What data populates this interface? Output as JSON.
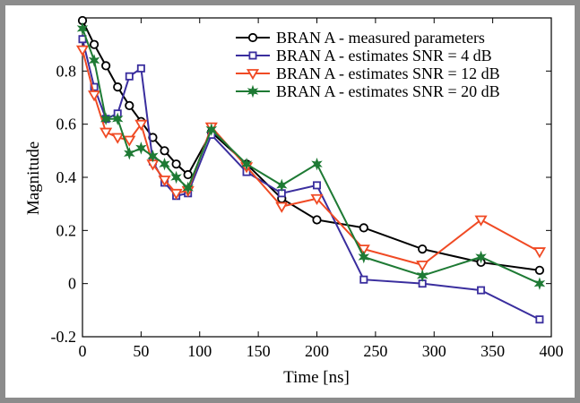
{
  "chart_data": {
    "type": "line",
    "title": "",
    "xlabel": "Time [ns]",
    "ylabel": "Magnitude",
    "xlim": [
      0,
      400
    ],
    "ylim": [
      -0.2,
      1.0
    ],
    "xticks": [
      0,
      50,
      100,
      150,
      200,
      250,
      300,
      350,
      400
    ],
    "yticks": [
      -0.2,
      0,
      0.2,
      0.4,
      0.6,
      0.8
    ],
    "ytick_labels": [
      "-0.2",
      "0",
      "0.2",
      "0.4",
      "0.6",
      "0.8"
    ],
    "grid": false,
    "legend_position": "top-right",
    "series": [
      {
        "name": "BRAN A - measured parameters",
        "color": "#000000",
        "marker": "circle",
        "x": [
          0,
          10,
          20,
          30,
          40,
          50,
          60,
          70,
          80,
          90,
          110,
          140,
          170,
          200,
          240,
          290,
          340,
          390
        ],
        "y": [
          0.99,
          0.9,
          0.82,
          0.74,
          0.67,
          0.61,
          0.55,
          0.5,
          0.45,
          0.41,
          0.57,
          0.45,
          0.32,
          0.24,
          0.21,
          0.13,
          0.08,
          0.05
        ]
      },
      {
        "name": "BRAN A - estimates SNR = 4 dB",
        "color": "#3a2e9e",
        "marker": "square",
        "x": [
          0,
          10,
          20,
          30,
          40,
          50,
          60,
          70,
          80,
          90,
          110,
          140,
          170,
          200,
          240,
          290,
          340,
          390
        ],
        "y": [
          0.92,
          0.74,
          0.62,
          0.64,
          0.78,
          0.81,
          0.46,
          0.38,
          0.33,
          0.34,
          0.56,
          0.42,
          0.34,
          0.37,
          0.015,
          0.0,
          -0.025,
          -0.135
        ]
      },
      {
        "name": "BRAN A - estimates SNR = 12 dB",
        "color": "#f04a24",
        "marker": "triangle-down",
        "x": [
          0,
          10,
          20,
          30,
          40,
          50,
          60,
          70,
          80,
          90,
          110,
          140,
          170,
          200,
          240,
          290,
          340,
          390
        ],
        "y": [
          0.88,
          0.71,
          0.57,
          0.55,
          0.54,
          0.6,
          0.45,
          0.39,
          0.34,
          0.35,
          0.59,
          0.44,
          0.29,
          0.32,
          0.13,
          0.07,
          0.24,
          0.12
        ]
      },
      {
        "name": "BRAN A - estimates SNR = 20 dB",
        "color": "#1e7a34",
        "marker": "star",
        "x": [
          0,
          10,
          20,
          30,
          40,
          50,
          60,
          70,
          80,
          90,
          110,
          140,
          170,
          200,
          240,
          290,
          340,
          390
        ],
        "y": [
          0.96,
          0.84,
          0.62,
          0.62,
          0.49,
          0.51,
          0.48,
          0.45,
          0.4,
          0.36,
          0.58,
          0.45,
          0.37,
          0.45,
          0.1,
          0.03,
          0.1,
          0.0
        ]
      }
    ]
  }
}
